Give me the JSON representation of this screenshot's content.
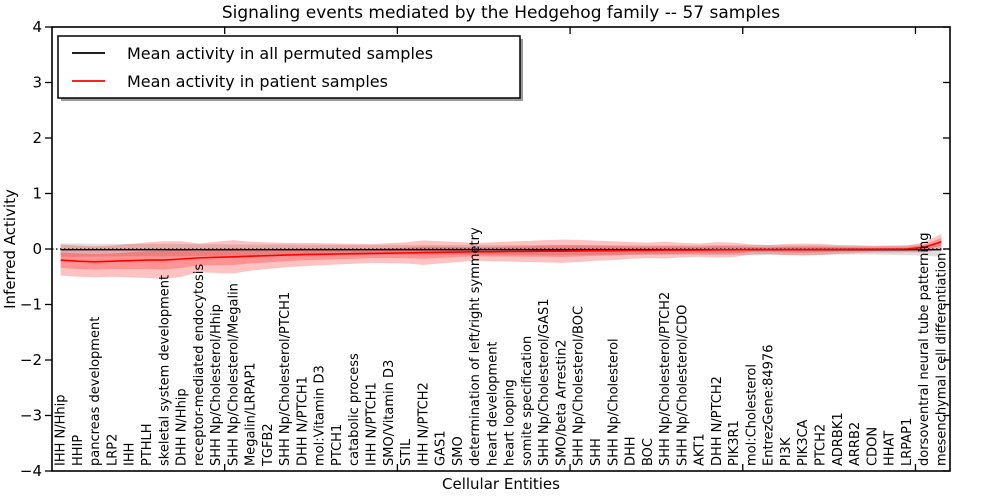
{
  "chart_data": {
    "type": "line",
    "title": "Signaling events mediated by the Hedgehog family -- 57 samples",
    "xlabel": "Cellular Entities",
    "ylabel": "Inferred Activity",
    "ylim": [
      -4,
      4
    ],
    "yticks": [
      {
        "v": 4,
        "label": "4"
      },
      {
        "v": 3,
        "label": "3"
      },
      {
        "v": 2,
        "label": "2"
      },
      {
        "v": 1,
        "label": "1"
      },
      {
        "v": 0,
        "label": "0"
      },
      {
        "v": -1,
        "label": "−1"
      },
      {
        "v": -2,
        "label": "−2"
      },
      {
        "v": -3,
        "label": "−3"
      },
      {
        "v": -4,
        "label": "−4"
      }
    ],
    "xticks_positions": [
      10,
      20,
      30,
      40,
      50
    ],
    "grid": false,
    "zero_line": 0,
    "legend": {
      "position": "upper left",
      "entries": [
        {
          "label": "Mean activity in all permuted samples",
          "color": "#000000"
        },
        {
          "label": "Mean activity in patient samples",
          "color": "#ff0000"
        }
      ]
    },
    "categories": [
      "IHH N/Hhip",
      "HHIP",
      "pancreas development",
      "LRP2",
      "IHH",
      "PTHLH",
      "skeletal system development",
      "DHH N/Hhip",
      "receptor-mediated endocytosis",
      "SHH Np/Cholesterol/Hhip",
      "SHH Np/Cholesterol/Megalin",
      "Megalin/LRPAP1",
      "TGFB2",
      "SHH Np/Cholesterol/PTCH1",
      "DHH N/PTCH1",
      "mol:Vitamin D3",
      "PTCH1",
      "catabolic process",
      "IHH N/PTCH1",
      "SMO/Vitamin D3",
      "STIL",
      "IHH N/PTCH2",
      "GAS1",
      "SMO",
      "determination of left/right symmetry",
      "heart development",
      "heart looping",
      "somite specification",
      "SHH Np/Cholesterol/GAS1",
      "SMO/beta Arrestin2",
      "SHH Np/Cholesterol/BOC",
      "SHH",
      "SHH Np/Cholesterol",
      "DHH",
      "BOC",
      "SHH Np/Cholesterol/PTCH2",
      "SHH Np/Cholesterol/CDO",
      "AKT1",
      "DHH N/PTCH2",
      "PIK3R1",
      "mol:Cholesterol",
      "EntrezGene:84976",
      "PI3K",
      "PIK3CA",
      "PTCH2",
      "ADRBK1",
      "ARRB2",
      "CDON",
      "HHAT",
      "LRPAP1",
      "dorsoventral neural tube patterning",
      "mesenchymal cell differentiation"
    ],
    "series": [
      {
        "name": "Mean activity in patient samples",
        "color": "#ff0000",
        "mean": [
          -0.2,
          -0.22,
          -0.23,
          -0.22,
          -0.21,
          -0.2,
          -0.2,
          -0.18,
          -0.16,
          -0.15,
          -0.14,
          -0.13,
          -0.12,
          -0.11,
          -0.1,
          -0.095,
          -0.09,
          -0.085,
          -0.08,
          -0.075,
          -0.07,
          -0.065,
          -0.06,
          -0.055,
          -0.05,
          -0.05,
          -0.045,
          -0.045,
          -0.04,
          -0.04,
          -0.035,
          -0.03,
          -0.03,
          -0.025,
          -0.025,
          -0.02,
          -0.02,
          -0.02,
          -0.015,
          -0.015,
          -0.01,
          -0.01,
          -0.01,
          -0.01,
          -0.008,
          -0.008,
          -0.005,
          -0.005,
          -0.003,
          0.0,
          0.03,
          0.13
        ],
        "std": [
          0.14,
          0.14,
          0.14,
          0.14,
          0.15,
          0.16,
          0.17,
          0.16,
          0.13,
          0.14,
          0.15,
          0.13,
          0.12,
          0.11,
          0.105,
          0.1,
          0.095,
          0.09,
          0.085,
          0.09,
          0.095,
          0.11,
          0.1,
          0.09,
          0.08,
          0.085,
          0.09,
          0.095,
          0.1,
          0.105,
          0.1,
          0.09,
          0.085,
          0.075,
          0.07,
          0.075,
          0.065,
          0.06,
          0.07,
          0.065,
          0.045,
          0.04,
          0.05,
          0.055,
          0.05,
          0.04,
          0.035,
          0.03,
          0.03,
          0.03,
          0.045,
          0.07
        ],
        "band_opacity": 0.24
      },
      {
        "name": "Mean activity in all permuted samples",
        "color": "#000000",
        "mean_constant": -0.012,
        "band_center": -0.02,
        "band_halfwidth": [
          0.12,
          0.12,
          0.115,
          0.115,
          0.11,
          0.11,
          0.115,
          0.11,
          0.105,
          0.105,
          0.1,
          0.1,
          0.1,
          0.1,
          0.095,
          0.095,
          0.095,
          0.09,
          0.09,
          0.09,
          0.09,
          0.095,
          0.09,
          0.09,
          0.09,
          0.09,
          0.09,
          0.09,
          0.095,
          0.095,
          0.09,
          0.09,
          0.09,
          0.085,
          0.085,
          0.085,
          0.085,
          0.085,
          0.09,
          0.09,
          0.09,
          0.09,
          0.085,
          0.085,
          0.085,
          0.08,
          0.08,
          0.08,
          0.085,
          0.09,
          0.1,
          0.12
        ],
        "band_color": "#8c8c8c",
        "band_opacity": 0.28
      }
    ]
  }
}
